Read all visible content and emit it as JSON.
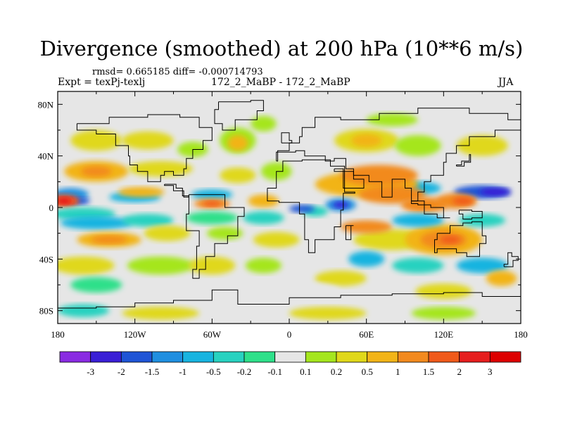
{
  "chart_data": {
    "type": "heatmap",
    "title": "Divergence (smoothed) at 200 hPa (10**6 m/s)",
    "stats_text": "rmsd= 0.665185 diff= -0.000714793",
    "experiment": "Expt = texPj-texlj",
    "cases": "172_2_MaBP - 172_2_MaBP",
    "season": "JJA",
    "x_range": [
      -180,
      180
    ],
    "y_range": [
      -90,
      90
    ],
    "x_ticks": [
      {
        "value": -180,
        "label": "180"
      },
      {
        "value": -120,
        "label": "120W"
      },
      {
        "value": -60,
        "label": "60W"
      },
      {
        "value": 0,
        "label": "0"
      },
      {
        "value": 60,
        "label": "60E"
      },
      {
        "value": 120,
        "label": "120E"
      },
      {
        "value": 180,
        "label": "180"
      }
    ],
    "y_ticks": [
      {
        "value": 80,
        "label": "80N"
      },
      {
        "value": 40,
        "label": "40N"
      },
      {
        "value": 0,
        "label": "0"
      },
      {
        "value": -40,
        "label": "40S"
      },
      {
        "value": -80,
        "label": "80S"
      }
    ],
    "colorbar": {
      "levels": [
        "-3",
        "-2",
        "-1.5",
        "-1",
        "-0.5",
        "-0.2",
        "-0.1",
        "0.1",
        "0.2",
        "0.5",
        "1",
        "1.5",
        "2",
        "3"
      ],
      "colors": [
        "#8a2be2",
        "#3a1fd6",
        "#1f55d6",
        "#1f8fe0",
        "#18b4e0",
        "#28d2c0",
        "#2ee08a",
        "#e6e6e6",
        "#a5e61e",
        "#e0d81a",
        "#f2b418",
        "#f28a1e",
        "#f05a1a",
        "#e61e1e",
        "#dd0000"
      ]
    },
    "continents_label": "continent outlines"
  }
}
